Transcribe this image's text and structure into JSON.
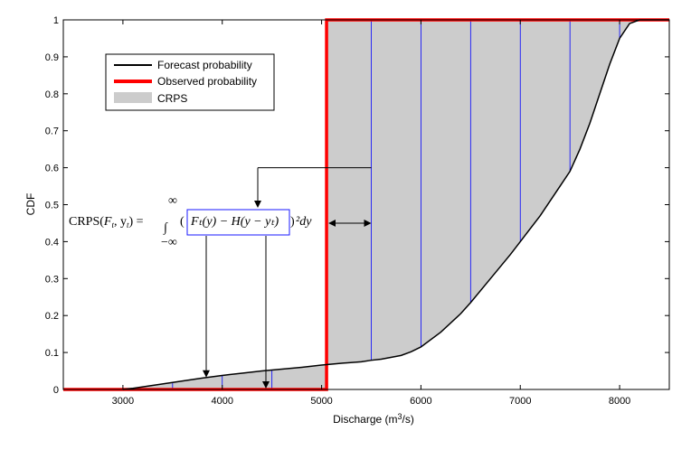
{
  "chart_data": {
    "type": "line",
    "xlabel": "Discharge (m",
    "xlabel_sup": "3",
    "xlabel_end": "/s)",
    "ylabel": "CDF",
    "xlim": [
      2400,
      8500
    ],
    "ylim": [
      0,
      1
    ],
    "x_ticks": [
      3000,
      4000,
      5000,
      6000,
      7000,
      8000
    ],
    "y_ticks": [
      0,
      0.1,
      0.2,
      0.3,
      0.4,
      0.5,
      0.6,
      0.7,
      0.8,
      0.9,
      1
    ],
    "x_tick_labels": [
      "3000",
      "4000",
      "5000",
      "6000",
      "7000",
      "8000"
    ],
    "y_tick_labels": [
      "0",
      "0.1",
      "0.2",
      "0.3",
      "0.4",
      "0.5",
      "0.6",
      "0.7",
      "0.8",
      "0.9",
      "1"
    ],
    "grid": false,
    "legend_position": "top-left",
    "series": [
      {
        "name": "Forecast probability",
        "color": "#000000",
        "x": [
          3000,
          3100,
          3200,
          3400,
          3600,
          3800,
          4000,
          4200,
          4400,
          4600,
          4800,
          5000,
          5200,
          5400,
          5500,
          5600,
          5800,
          5900,
          6000,
          6200,
          6400,
          6500,
          6700,
          6900,
          7000,
          7200,
          7400,
          7500,
          7600,
          7700,
          7800,
          7900,
          8000,
          8100,
          8200
        ],
        "y": [
          0.0,
          0.003,
          0.007,
          0.015,
          0.023,
          0.031,
          0.038,
          0.044,
          0.05,
          0.055,
          0.06,
          0.066,
          0.071,
          0.075,
          0.079,
          0.082,
          0.092,
          0.102,
          0.115,
          0.155,
          0.205,
          0.235,
          0.3,
          0.365,
          0.4,
          0.47,
          0.55,
          0.59,
          0.65,
          0.72,
          0.8,
          0.88,
          0.95,
          0.99,
          1.0
        ]
      },
      {
        "name": "Observed probability",
        "color": "#ff0000",
        "step_at": 5050
      },
      {
        "name": "CRPS",
        "color": "#cccccc"
      }
    ],
    "bin_lines": [
      3500,
      4000,
      4500,
      5500,
      6000,
      6500,
      7000,
      7500,
      8000
    ],
    "annotation": {
      "formula": "CRPS(Fₜ, yₜ) = ∫ (Fₜ(y) − H(y − yₜ))² dy",
      "lhs": "CRPS(",
      "lhs_args": "F",
      "lhs_end": ", y",
      "lhs_close": ") =",
      "int_upper": "∞",
      "int_lower": "−∞",
      "box_text": "Fₜ(y) − H(y − yₜ)",
      "rhs": "²dy"
    }
  }
}
